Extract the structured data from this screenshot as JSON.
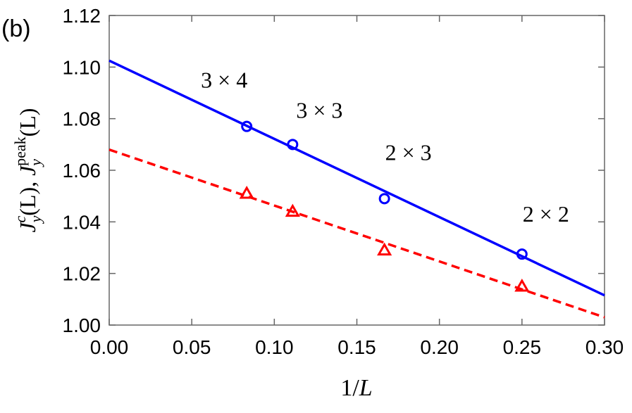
{
  "chart_data": {
    "type": "scatter",
    "panel_label": "(b)",
    "xlabel_parts": [
      "1/",
      "L"
    ],
    "ylabel_parts": [
      "J",
      "y",
      "c",
      "(L), ",
      "J",
      "y",
      "peak",
      "(L)"
    ],
    "xlim": [
      0,
      0.3
    ],
    "ylim": [
      1.0,
      1.12
    ],
    "xticks": [
      {
        "value": 0,
        "label": "0.00"
      },
      {
        "value": 0.05,
        "label": "0.05"
      },
      {
        "value": 0.1,
        "label": "0.10"
      },
      {
        "value": 0.15,
        "label": "0.15"
      },
      {
        "value": 0.2,
        "label": "0.20"
      },
      {
        "value": 0.25,
        "label": "0.25"
      },
      {
        "value": 0.3,
        "label": "0.30"
      }
    ],
    "yticks": [
      {
        "value": 1.0,
        "label": "1.00"
      },
      {
        "value": 1.02,
        "label": "1.02"
      },
      {
        "value": 1.04,
        "label": "1.04"
      },
      {
        "value": 1.06,
        "label": "1.06"
      },
      {
        "value": 1.08,
        "label": "1.08"
      },
      {
        "value": 1.1,
        "label": "1.10"
      },
      {
        "value": 1.12,
        "label": "1.12"
      }
    ],
    "annotations": [
      "3 × 4",
      "3 × 3",
      "2 × 3",
      "2 × 2"
    ],
    "series": [
      {
        "marker": "circle",
        "color": "#0000ff",
        "x": [
          0.0833,
          0.1111,
          0.1667,
          0.25
        ],
        "values": [
          1.077,
          1.07,
          1.049,
          1.0275
        ]
      },
      {
        "marker": "triangle",
        "color": "#ff0000",
        "x": [
          0.0833,
          0.1111,
          0.1667,
          0.25
        ],
        "values": [
          1.051,
          1.044,
          1.029,
          1.015
        ]
      },
      {
        "line": "solid",
        "color": "#0000ff",
        "x": [
          0,
          0.3
        ],
        "values": [
          1.1025,
          1.0115
        ]
      },
      {
        "line": "dashed",
        "color": "#ff0000",
        "x": [
          0,
          0.3
        ],
        "values": [
          1.068,
          1.003
        ]
      }
    ]
  }
}
